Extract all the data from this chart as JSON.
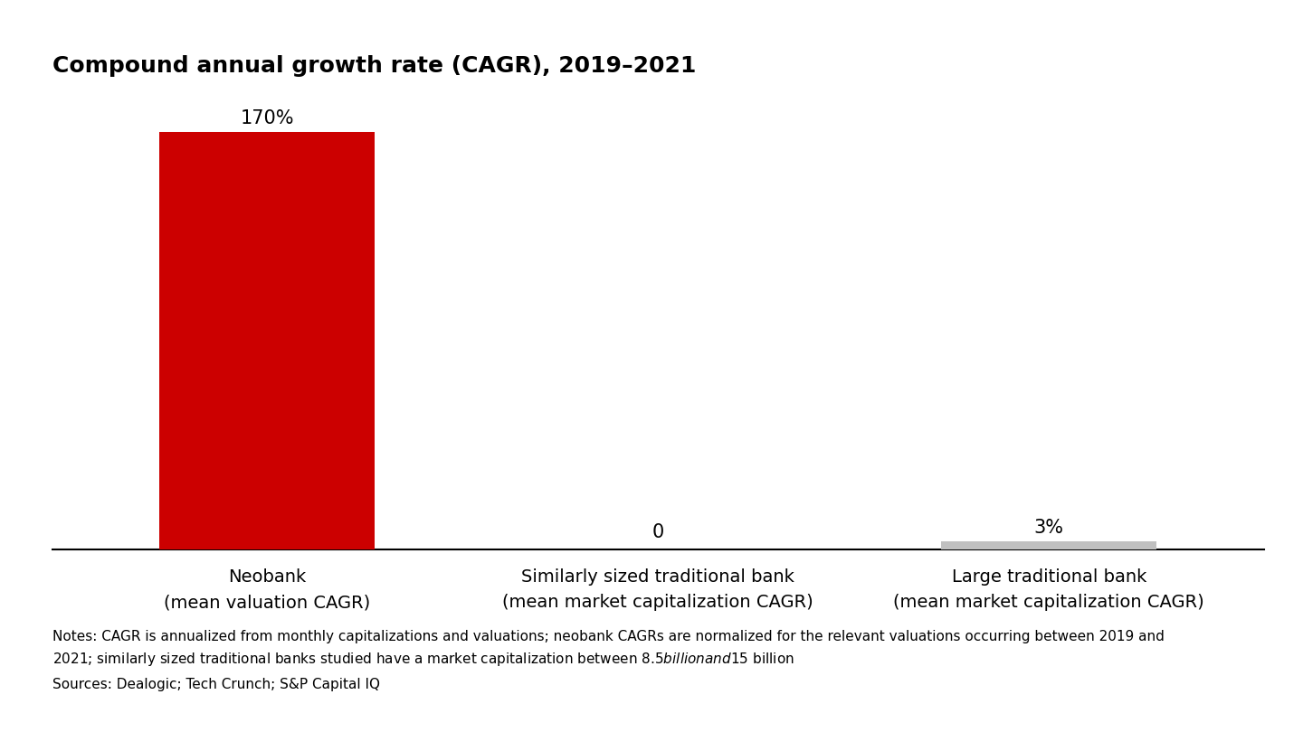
{
  "title": "Compound annual growth rate (CAGR), 2019–2021",
  "categories": [
    "Neobank\n(mean valuation CAGR)",
    "Similarly sized traditional bank\n(mean market capitalization CAGR)",
    "Large traditional bank\n(mean market capitalization CAGR)"
  ],
  "values": [
    170,
    0,
    3
  ],
  "bar_labels": [
    "170%",
    "0",
    "3%"
  ],
  "bar_colors": [
    "#cc0000",
    "#c0c0c0",
    "#c0c0c0"
  ],
  "ylim": [
    0,
    185
  ],
  "notes_line1": "Notes: CAGR is annualized from monthly capitalizations and valuations; neobank CAGRs are normalized for the relevant valuations occurring between 2019 and",
  "notes_line2": "2021; similarly sized traditional banks studied have a market capitalization between $8.5 billion and $15 billion",
  "notes_line3": "Sources: Dealogic; Tech Crunch; S&P Capital IQ",
  "title_fontsize": 18,
  "tick_label_fontsize": 14,
  "notes_fontsize": 11,
  "bar_label_fontsize": 15,
  "background_color": "#ffffff"
}
